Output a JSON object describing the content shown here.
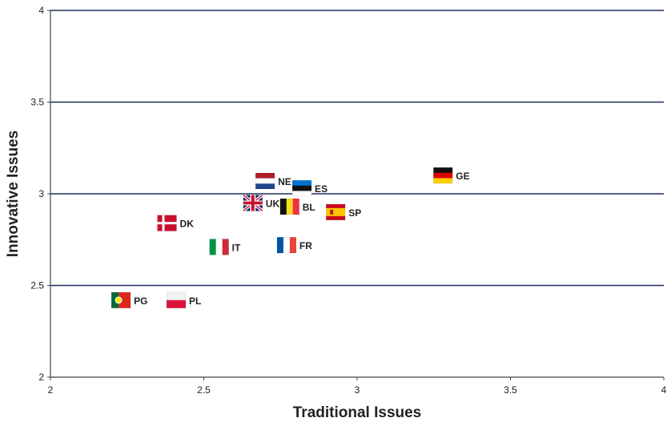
{
  "chart_data": {
    "type": "scatter",
    "title": "",
    "xlabel": "Traditional Issues",
    "ylabel": "Innovative Issues",
    "xlim": [
      2,
      4
    ],
    "ylim": [
      2,
      4
    ],
    "x_ticks": [
      2,
      2.5,
      3,
      3.5,
      4
    ],
    "y_ticks": [
      2,
      2.5,
      3,
      3.5,
      4
    ],
    "x_tick_labels": [
      "2",
      "2.5",
      "3",
      "3.5",
      "4"
    ],
    "y_tick_labels": [
      "2",
      "2.5",
      "3",
      "3.5",
      "4"
    ],
    "grid": "horizontal",
    "grid_color": "#1f2f5c",
    "markers": "national flags",
    "points": [
      {
        "label": "NE",
        "x": 2.7,
        "y": 3.07
      },
      {
        "label": "ES",
        "x": 2.82,
        "y": 3.03
      },
      {
        "label": "UK",
        "x": 2.66,
        "y": 2.95
      },
      {
        "label": "BL",
        "x": 2.78,
        "y": 2.93
      },
      {
        "label": "SP",
        "x": 2.93,
        "y": 2.9
      },
      {
        "label": "GE",
        "x": 3.28,
        "y": 3.1
      },
      {
        "label": "DK",
        "x": 2.38,
        "y": 2.84
      },
      {
        "label": "IT",
        "x": 2.55,
        "y": 2.71
      },
      {
        "label": "FR",
        "x": 2.77,
        "y": 2.72
      },
      {
        "label": "PG",
        "x": 2.23,
        "y": 2.42
      },
      {
        "label": "PL",
        "x": 2.41,
        "y": 2.42
      }
    ]
  }
}
